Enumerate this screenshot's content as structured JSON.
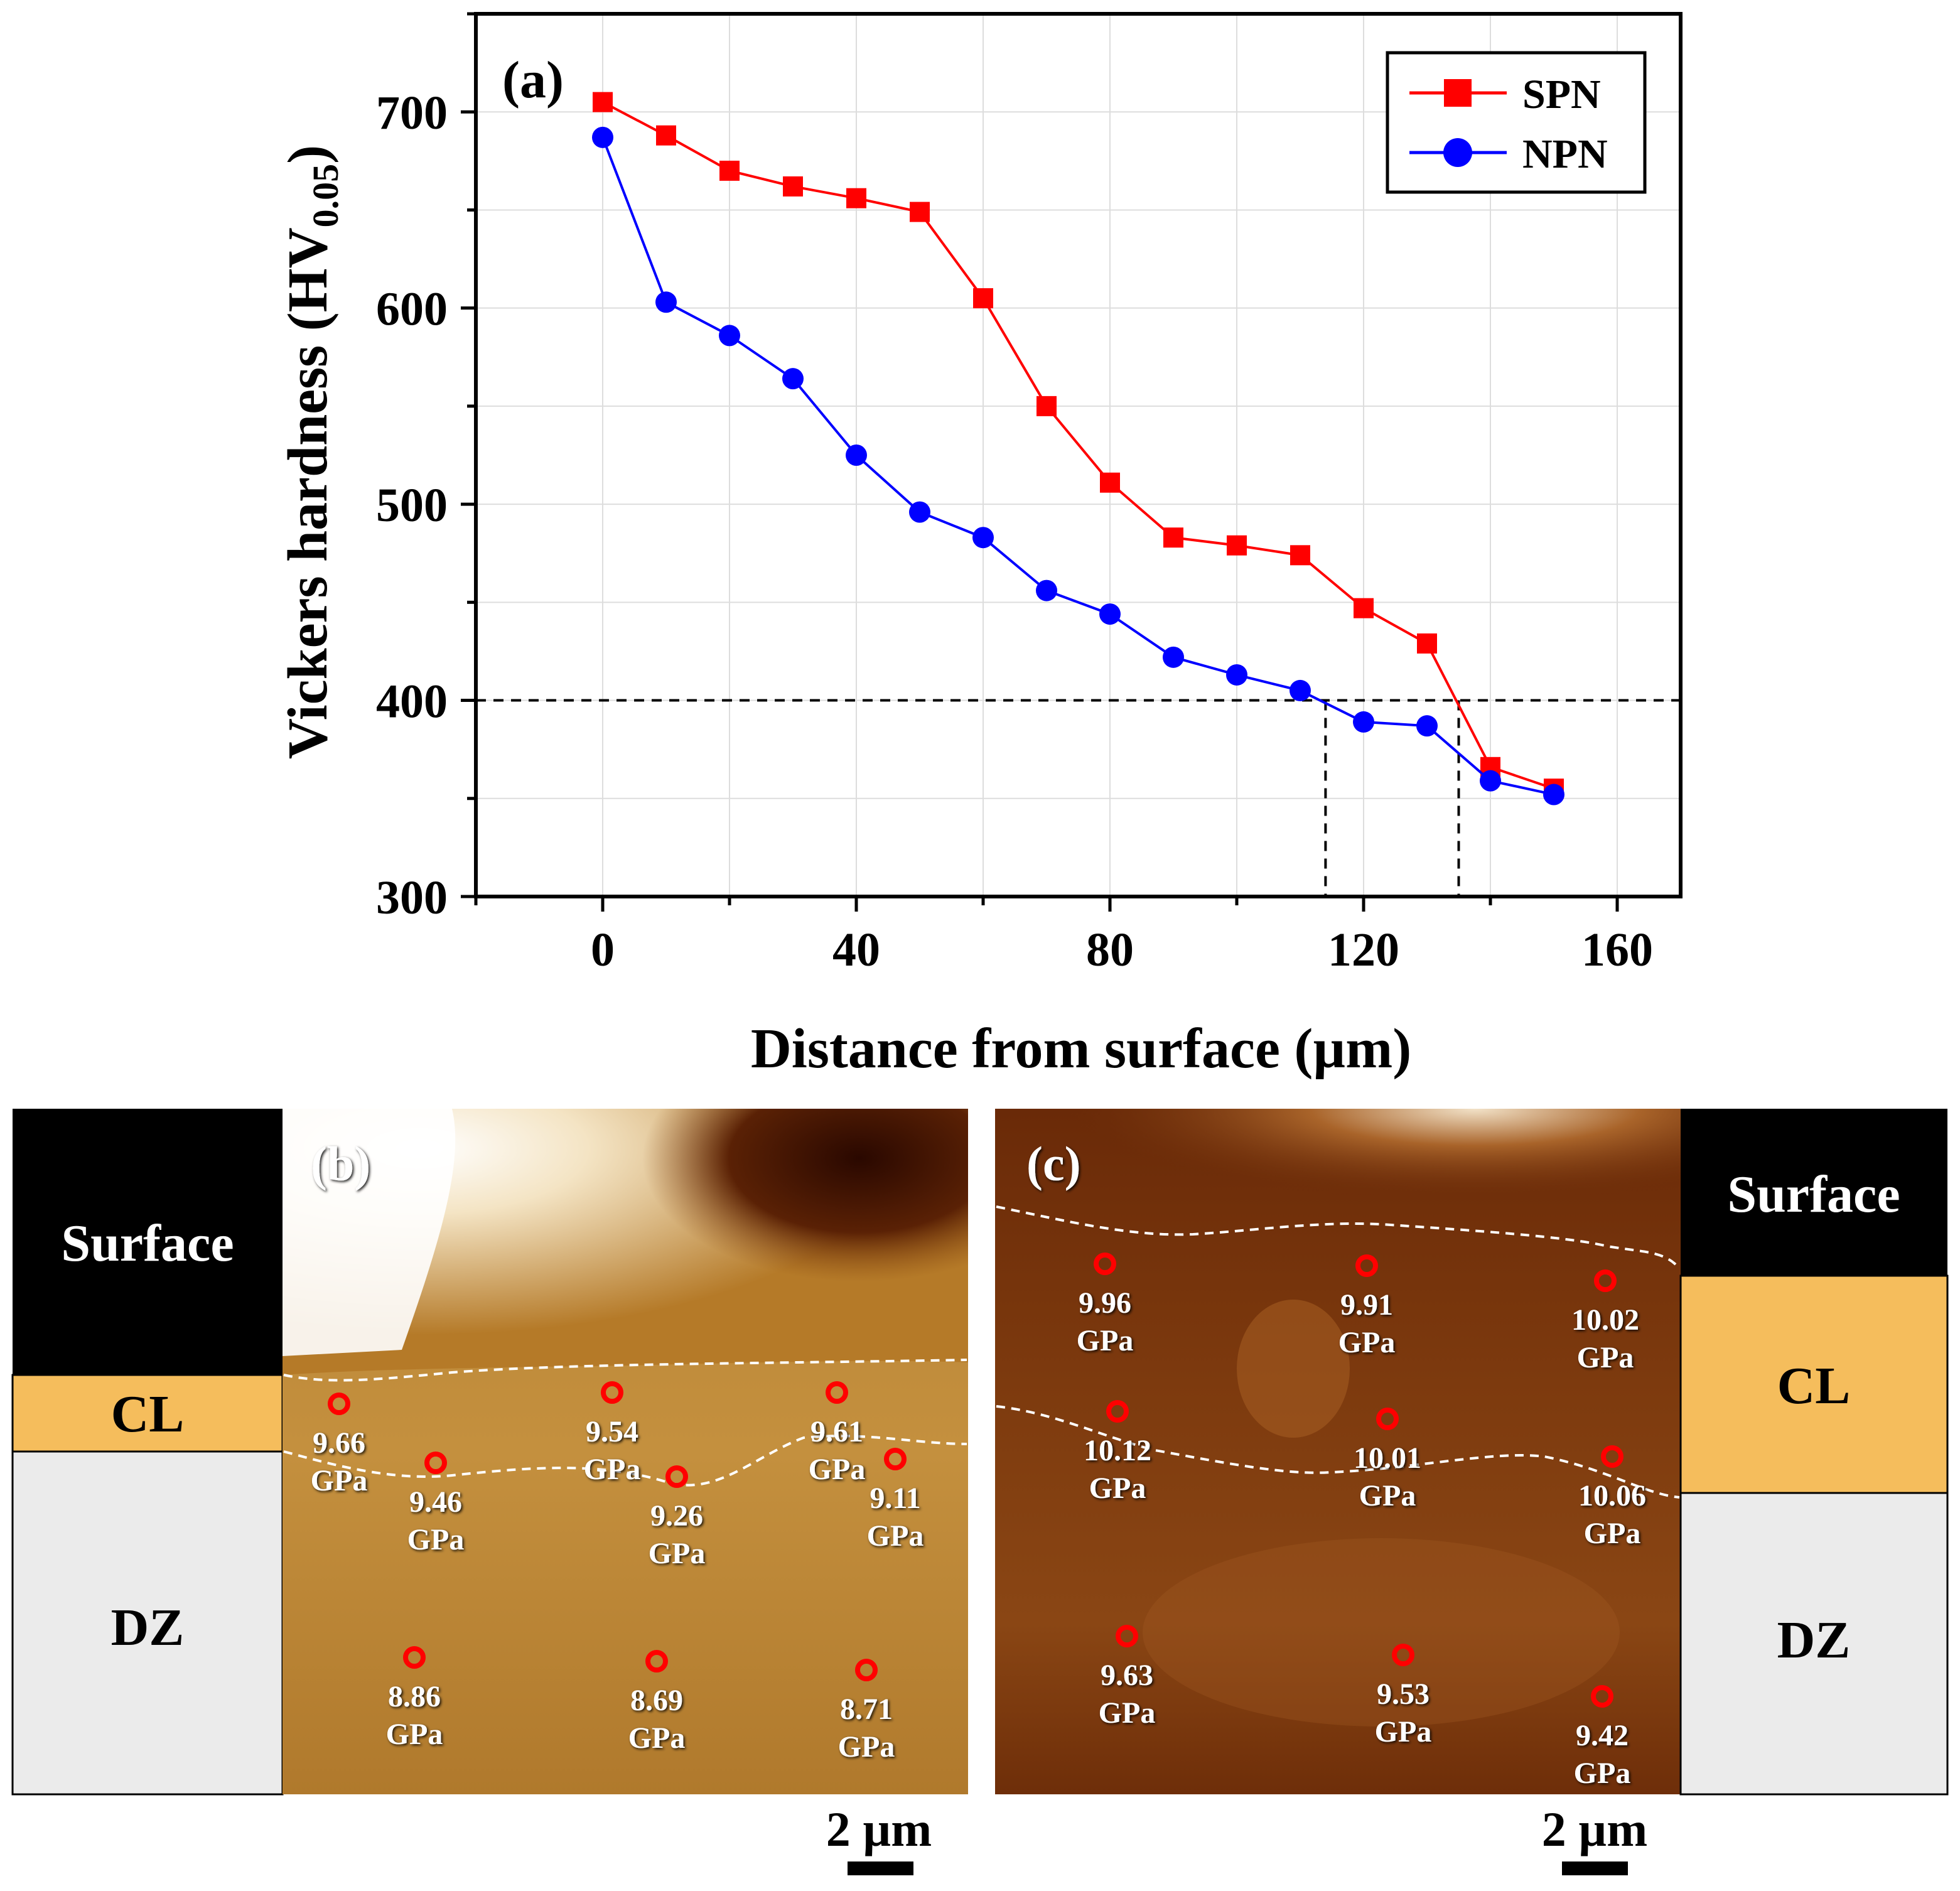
{
  "chart_data": {
    "type": "line",
    "panel_label": "(a)",
    "xlabel": "Distance from surface (µm)",
    "ylabel": "Vickers hardness (HV",
    "ylabel_sub": "0.05",
    "ylabel_close": ")",
    "xlim": [
      -20,
      170
    ],
    "ylim": [
      300,
      750
    ],
    "xticks": [
      0,
      40,
      80,
      120,
      160
    ],
    "yticks": [
      300,
      400,
      500,
      600,
      700
    ],
    "grid": true,
    "legend_position": "top-right",
    "x": [
      0,
      10,
      20,
      30,
      40,
      50,
      60,
      70,
      80,
      90,
      100,
      110,
      120,
      130,
      140,
      150
    ],
    "series": [
      {
        "name": "SPN",
        "color": "#ff0000",
        "marker": "square",
        "values": [
          705,
          688,
          670,
          662,
          656,
          649,
          605,
          550,
          511,
          483,
          479,
          474,
          447,
          429,
          366,
          355
        ]
      },
      {
        "name": "NPN",
        "color": "#0000ff",
        "marker": "circle",
        "values": [
          687,
          603,
          586,
          564,
          525,
          496,
          483,
          456,
          444,
          422,
          413,
          405,
          389,
          387,
          359,
          352
        ]
      }
    ],
    "reference_lines": {
      "hardness": 400,
      "depths": [
        114,
        135
      ]
    }
  },
  "panel_b": {
    "label": "(b)",
    "zones": [
      "Surface",
      "CL",
      "DZ"
    ],
    "points": [
      "9.66",
      "9.46",
      "9.54",
      "9.26",
      "9.61",
      "9.11",
      "8.86",
      "8.69",
      "8.71"
    ],
    "unit": "GPa",
    "scale_bar": "2 µm"
  },
  "panel_c": {
    "label": "(c)",
    "zones": [
      "Surface",
      "CL",
      "DZ"
    ],
    "points": [
      "9.96",
      "9.91",
      "10.02",
      "10.12",
      "10.01",
      "10.06",
      "9.63",
      "9.53",
      "9.42"
    ],
    "unit": "GPa",
    "scale_bar": "2 µm"
  },
  "colors": {
    "surface": "#000000",
    "cl": "#f5bd5c",
    "dz": "#ebebeb",
    "marker_ring": "#ff0000"
  }
}
